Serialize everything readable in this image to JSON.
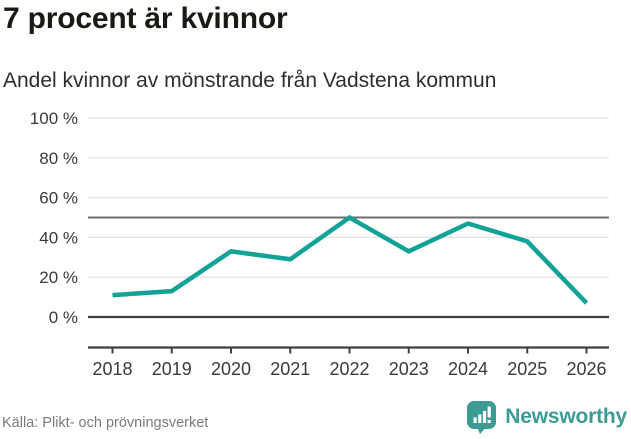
{
  "header": {
    "title": "7 procent är kvinnor",
    "subtitle": "Andel kvinnor av mönstrande från Vadstena kommun"
  },
  "chart_data": {
    "type": "line",
    "categories": [
      "2018",
      "2019",
      "2020",
      "2021",
      "2022",
      "2023",
      "2024",
      "2025",
      "2026"
    ],
    "series": [
      {
        "name": "Andel kvinnor av mönstrande",
        "values": [
          11,
          13,
          33,
          29,
          50,
          33,
          47,
          38,
          7
        ]
      }
    ],
    "unit": "%",
    "ylim": [
      0,
      100
    ],
    "ytick_interval": 20,
    "ytick_labels": [
      "0 %",
      "20 %",
      "40 %",
      "60 %",
      "80 %",
      "100 %"
    ],
    "reference_line": 50,
    "grid": true,
    "legend": "none",
    "line_color": "#12a296"
  },
  "footer": {
    "source": "Källa: Plikt- och prövningsverket",
    "brand": "Newsworthy"
  },
  "colors": {
    "line": "#12a296",
    "brand_teal": "#3e9b94",
    "gridline": "#e4e4e4",
    "reference_line": "#6f6f6f",
    "axis_line": "#3f3f3f",
    "tick_label": "#3a3a3a"
  }
}
